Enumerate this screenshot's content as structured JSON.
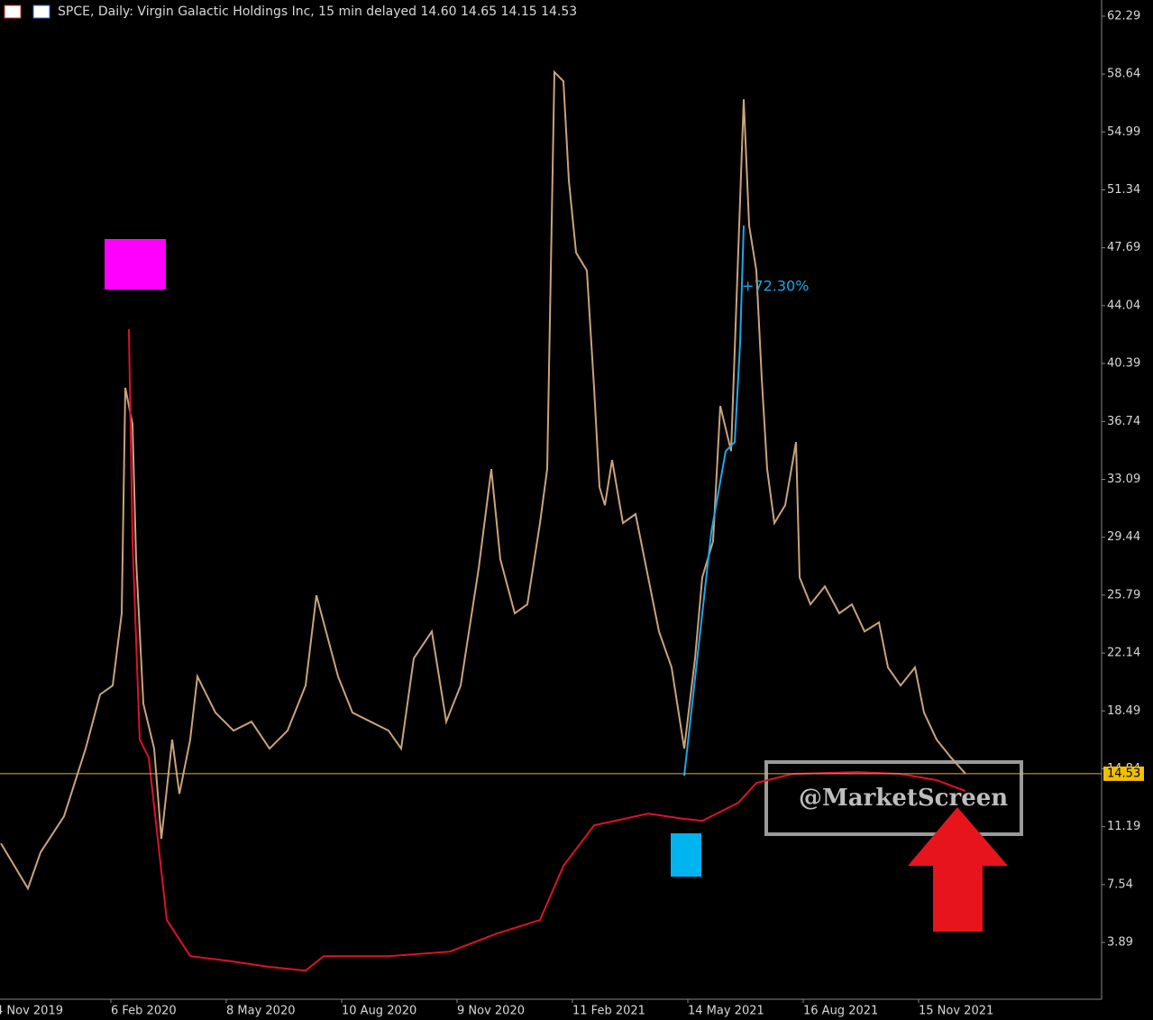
{
  "chart_data": {
    "type": "line",
    "title": "SPCE, Daily:  Virgin Galactic Holdings Inc, 15 min delayed  14.60 14.65 14.15 14.53",
    "annotation": "+72.30%",
    "watermark": "@MarketScreen",
    "last_price": 14.53,
    "ylim": [
      0.31,
      63.31
    ],
    "yticks": [
      62.29,
      58.64,
      54.99,
      51.34,
      47.69,
      44.04,
      40.39,
      36.74,
      33.09,
      29.44,
      25.79,
      22.14,
      18.49,
      14.84,
      11.19,
      7.54,
      3.89
    ],
    "xlim": [
      2.5,
      613.5
    ],
    "xticks": [
      {
        "value": 0,
        "label": "4 Nov 2019"
      },
      {
        "value": 64,
        "label": "6 Feb 2020"
      },
      {
        "value": 128,
        "label": "8 May 2020"
      },
      {
        "value": 192,
        "label": "10 Aug 2020"
      },
      {
        "value": 256,
        "label": "9 Nov 2020"
      },
      {
        "value": 320,
        "label": "11 Feb 2021"
      },
      {
        "value": 384,
        "label": "14 May 2021"
      },
      {
        "value": 448,
        "label": "16 Aug 2021"
      },
      {
        "value": 512,
        "label": "15 Nov 2021"
      }
    ],
    "grid": false,
    "series": [
      {
        "color": "#c9a37c",
        "x": [
          3,
          18,
          25,
          38,
          50,
          58,
          65,
          70,
          72,
          76,
          78,
          82,
          88,
          92,
          98,
          102,
          108,
          112,
          122,
          132,
          142,
          152,
          162,
          172,
          178,
          182,
          190,
          198,
          208,
          218,
          225,
          232,
          242,
          250,
          258,
          268,
          275,
          280,
          288,
          295,
          302,
          306,
          310,
          315,
          318,
          322,
          328,
          332,
          335,
          338,
          342,
          348,
          355,
          362,
          368,
          375,
          382,
          388,
          392,
          398,
          402,
          408,
          415,
          418,
          422,
          425,
          428,
          432,
          438,
          444,
          446,
          452,
          460,
          468,
          475,
          482,
          490,
          495,
          502,
          510,
          515,
          522,
          530,
          538
        ],
        "values": [
          10.14,
          7.3,
          9.57,
          11.84,
          16.11,
          19.52,
          20.09,
          24.64,
          38.86,
          36.58,
          28.05,
          18.95,
          16.11,
          10.42,
          16.68,
          13.26,
          16.68,
          20.66,
          18.38,
          17.25,
          17.81,
          16.11,
          17.25,
          20.09,
          25.78,
          24.07,
          20.66,
          18.38,
          17.81,
          17.25,
          16.11,
          21.8,
          23.5,
          17.81,
          20.09,
          27.48,
          33.74,
          28.05,
          24.64,
          25.21,
          30.33,
          33.74,
          58.76,
          58.19,
          51.94,
          47.39,
          46.25,
          38.86,
          32.6,
          31.46,
          34.31,
          30.33,
          30.9,
          26.91,
          23.5,
          21.23,
          16.11,
          21.8,
          26.91,
          29.19,
          37.72,
          34.87,
          57.05,
          49.09,
          46.25,
          39.43,
          33.74,
          30.33,
          31.46,
          35.44,
          26.91,
          25.21,
          26.34,
          24.64,
          25.21,
          23.5,
          24.07,
          21.23,
          20.09,
          21.23,
          18.38,
          16.68,
          15.54,
          14.53
        ]
      },
      {
        "color": "#e0102a",
        "x": [
          74,
          76,
          80,
          85,
          95,
          108,
          128,
          152,
          172,
          182,
          218,
          252,
          278,
          302,
          315,
          332,
          362,
          382,
          392,
          412,
          422,
          442,
          478,
          502,
          522,
          538
        ],
        "values": [
          42.55,
          29.19,
          16.68,
          15.54,
          5.31,
          3.03,
          2.75,
          2.35,
          2.12,
          3.03,
          3.03,
          3.31,
          4.45,
          5.31,
          8.72,
          11.28,
          12.02,
          11.68,
          11.56,
          12.7,
          13.95,
          14.52,
          14.63,
          14.52,
          14.12,
          13.44
        ]
      },
      {
        "color": "#1aa8e8",
        "x": [
          382,
          397,
          405,
          410,
          413,
          415
        ],
        "values": [
          14.4,
          29.76,
          34.87,
          35.44,
          41.7,
          49.09
        ]
      }
    ]
  }
}
